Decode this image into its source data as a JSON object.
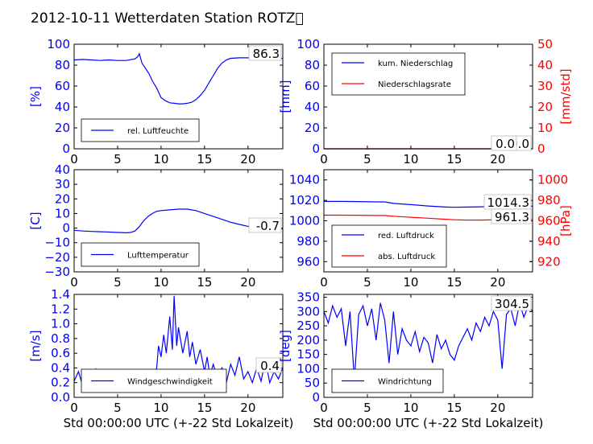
{
  "title": "2012-10-11 Wetterdaten Station ROTZ\u0000",
  "colors": {
    "primary": "#0000ff",
    "secondary": "#ff0000",
    "axis": "#000000"
  },
  "chart_data": [
    {
      "id": "humidity",
      "type": "line",
      "xlim": [
        0,
        24
      ],
      "ylim": [
        0,
        100
      ],
      "xticks": [
        "0",
        "5",
        "10",
        "15",
        "20"
      ],
      "yticks": [
        "0",
        "20",
        "40",
        "60",
        "80",
        "100"
      ],
      "ylabel": "[%]",
      "xlabel": "",
      "legend_placement": "lower-left",
      "value_label": "86.3",
      "series": [
        {
          "name": "rel. Luftfeuchte",
          "color": "#0000ff",
          "x": [
            0,
            1,
            2,
            3,
            4,
            5,
            6,
            7,
            7.3,
            7.5,
            7.8,
            8.2,
            8.6,
            9,
            9.5,
            10,
            10.5,
            11,
            11.5,
            12,
            12.5,
            13,
            13.5,
            14,
            14.5,
            15,
            15.5,
            16,
            16.5,
            17,
            17.5,
            18,
            19,
            20,
            21,
            22,
            23,
            24
          ],
          "y": [
            85,
            85.5,
            85,
            84.5,
            85,
            84.5,
            84.5,
            86,
            88,
            91,
            82,
            77,
            72,
            65,
            58,
            49,
            46,
            44,
            43.5,
            43,
            43,
            43.5,
            44.5,
            47,
            51,
            56,
            63,
            70,
            77,
            82,
            85,
            86.5,
            87,
            87,
            87,
            86.5,
            86.5,
            86.5
          ]
        }
      ]
    },
    {
      "id": "precipitation",
      "type": "line",
      "xlim": [
        0,
        24
      ],
      "ylim": [
        0,
        100
      ],
      "y2lim": [
        0,
        50
      ],
      "xticks": [
        "0",
        "5",
        "10",
        "15",
        "20"
      ],
      "yticks": [
        "0",
        "20",
        "40",
        "60",
        "80",
        "100"
      ],
      "y2ticks": [
        "0",
        "10",
        "20",
        "30",
        "40",
        "50"
      ],
      "ylabel": "[mm]",
      "y2label": "[mm/std]",
      "xlabel": "",
      "legend_placement": "upper-left",
      "value_label": "0.0",
      "value_label_2": "0.0",
      "series": [
        {
          "name": "kum. Niederschlag",
          "color": "#0000ff",
          "axis": "left",
          "x": [
            0,
            24
          ],
          "y": [
            0,
            0
          ]
        },
        {
          "name": "Niederschlagsrate",
          "color": "#ff0000",
          "axis": "right",
          "x": [
            0,
            24
          ],
          "y": [
            0,
            0
          ]
        }
      ]
    },
    {
      "id": "temperature",
      "type": "line",
      "xlim": [
        0,
        24
      ],
      "ylim": [
        -30,
        40
      ],
      "xticks": [
        "0",
        "5",
        "10",
        "15",
        "20"
      ],
      "yticks": [
        "−30",
        "−20",
        "−10",
        "0",
        "10",
        "20",
        "30",
        "40"
      ],
      "ylabel": "[C]",
      "xlabel": "",
      "legend_placement": "lower-left",
      "value_label": "-0.7",
      "series": [
        {
          "name": "Lufttemperatur",
          "color": "#0000ff",
          "x": [
            0,
            1,
            2,
            3,
            4,
            5,
            6,
            6.5,
            7,
            7.5,
            8,
            8.5,
            9,
            9.5,
            10,
            11,
            12,
            13,
            14,
            15,
            16,
            17,
            18,
            19,
            20,
            21,
            22,
            23,
            24
          ],
          "y": [
            -1.5,
            -2,
            -2.3,
            -2.5,
            -2.7,
            -3,
            -3.2,
            -3,
            -2,
            1,
            5,
            8,
            10,
            11.5,
            12,
            12.5,
            13,
            13,
            12,
            10,
            8,
            6,
            4,
            2.5,
            1.2,
            0.3,
            -0.3,
            -0.6,
            -0.7
          ]
        }
      ]
    },
    {
      "id": "pressure",
      "type": "line",
      "xlim": [
        0,
        24
      ],
      "ylim": [
        950,
        1050
      ],
      "y2lim": [
        910,
        1010
      ],
      "xticks": [
        "0",
        "5",
        "10",
        "15",
        "20"
      ],
      "yticks": [
        "960",
        "980",
        "1000",
        "1020",
        "1040"
      ],
      "y2ticks": [
        "920",
        "940",
        "960",
        "980",
        "1000"
      ],
      "ylabel": "",
      "y2label": "[hPa]",
      "xlabel": "",
      "legend_placement": "lower-left",
      "value_label": "1014.3",
      "value_label_2": "961.3",
      "series": [
        {
          "name": "red. Luftdruck",
          "color": "#0000ff",
          "axis": "left",
          "x": [
            0,
            2,
            4,
            6,
            7,
            8,
            10,
            12,
            14,
            15,
            16,
            18,
            20,
            22,
            24
          ],
          "y": [
            1019,
            1019,
            1018.8,
            1018.5,
            1018.5,
            1017,
            1015.8,
            1014.5,
            1013.5,
            1013.2,
            1013.4,
            1013.7,
            1014,
            1014.2,
            1014.3
          ]
        },
        {
          "name": "abs. Luftdruck",
          "color": "#ff0000",
          "axis": "right",
          "x": [
            0,
            2,
            4,
            6,
            7,
            8,
            10,
            12,
            14,
            15,
            16,
            18,
            20,
            22,
            24
          ],
          "y": [
            965.5,
            965.5,
            965.4,
            965.2,
            965.2,
            964.5,
            963.5,
            962.5,
            961.5,
            961,
            960.8,
            960.7,
            961,
            961.2,
            961.3
          ]
        }
      ]
    },
    {
      "id": "wind-speed",
      "type": "line",
      "xlim": [
        0,
        24
      ],
      "ylim": [
        0,
        1.4
      ],
      "xticks": [
        "0",
        "5",
        "10",
        "15",
        "20"
      ],
      "yticks": [
        "0.0",
        "0.2",
        "0.4",
        "0.6",
        "0.8",
        "1.0",
        "1.2",
        "1.4"
      ],
      "ylabel": "[m/s]",
      "xlabel": "Std 00:00:00 UTC (+-22 Std Lokalzeit)",
      "legend_placement": "lower-left",
      "value_label": "0.4",
      "series": [
        {
          "name": "Windgeschwindigkeit",
          "color": "#0000ff",
          "x": [
            0,
            0.5,
            1,
            1.5,
            2,
            2.5,
            3,
            3.5,
            4,
            4.5,
            5,
            5.5,
            6,
            6.5,
            7,
            7.5,
            8,
            8.5,
            9,
            9.5,
            9.7,
            10,
            10.3,
            10.6,
            11,
            11.3,
            11.5,
            11.8,
            12,
            12.5,
            13,
            13.3,
            13.6,
            14,
            14.5,
            15,
            15.3,
            15.6,
            16,
            16.5,
            17,
            17.5,
            18,
            18.5,
            19,
            19.5,
            20,
            20.5,
            21,
            21.5,
            22,
            22.5,
            23,
            23.5,
            24
          ],
          "y": [
            0.22,
            0.35,
            0.15,
            0.32,
            0.12,
            0.38,
            0.18,
            0.3,
            0.14,
            0.35,
            0.2,
            0.28,
            0.12,
            0.3,
            0.18,
            0.3,
            0.2,
            0.36,
            0.25,
            0.4,
            0.7,
            0.55,
            0.85,
            0.6,
            1.1,
            0.65,
            1.38,
            0.7,
            0.95,
            0.6,
            0.9,
            0.55,
            0.75,
            0.45,
            0.65,
            0.35,
            0.55,
            0.3,
            0.45,
            0.25,
            0.4,
            0.2,
            0.45,
            0.3,
            0.55,
            0.25,
            0.35,
            0.2,
            0.4,
            0.22,
            0.5,
            0.2,
            0.35,
            0.25,
            0.4
          ]
        }
      ]
    },
    {
      "id": "wind-direction",
      "type": "line",
      "xlim": [
        0,
        24
      ],
      "ylim": [
        0,
        360
      ],
      "xticks": [
        "0",
        "5",
        "10",
        "15",
        "20"
      ],
      "yticks": [
        "0",
        "50",
        "100",
        "150",
        "200",
        "250",
        "300",
        "350"
      ],
      "ylabel": "[deg]",
      "xlabel": "Std 00:00:00 UTC (+-22 Std Lokalzeit)",
      "legend_placement": "lower-left",
      "value_label": "304.5",
      "series": [
        {
          "name": "Windrichtung",
          "color": "#0000ff",
          "x": [
            0,
            0.5,
            1,
            1.5,
            2,
            2.5,
            3,
            3.5,
            4,
            4.5,
            5,
            5.5,
            6,
            6.5,
            7,
            7.5,
            8,
            8.5,
            9,
            9.5,
            10,
            10.5,
            11,
            11.5,
            12,
            12.5,
            13,
            13.5,
            14,
            14.5,
            15,
            15.5,
            16,
            16.5,
            17,
            17.5,
            18,
            18.5,
            19,
            19.5,
            20,
            20.5,
            21,
            21.5,
            22,
            22.5,
            23,
            23.5,
            24
          ],
          "y": [
            300,
            260,
            320,
            280,
            310,
            180,
            300,
            60,
            290,
            320,
            250,
            310,
            200,
            330,
            270,
            120,
            300,
            150,
            240,
            200,
            180,
            230,
            160,
            210,
            190,
            120,
            220,
            170,
            200,
            150,
            130,
            180,
            210,
            240,
            200,
            260,
            230,
            280,
            250,
            300,
            270,
            100,
            290,
            310,
            250,
            330,
            280,
            320,
            300
          ]
        }
      ]
    }
  ]
}
